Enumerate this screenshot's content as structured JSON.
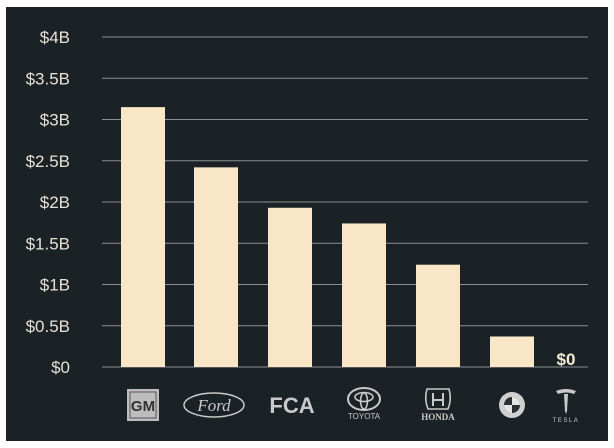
{
  "chart_data": {
    "type": "bar",
    "categories": [
      "GM",
      "Ford",
      "FCA",
      "TOYOTA",
      "HONDA",
      "BMW",
      "TESLA"
    ],
    "values": [
      3.15,
      2.42,
      1.93,
      1.74,
      1.24,
      0.37,
      0
    ],
    "unit": "billion USD",
    "ylim": [
      0,
      4
    ],
    "yticks": [
      {
        "value": 0,
        "label": "$0"
      },
      {
        "value": 0.5,
        "label": "$0.5B"
      },
      {
        "value": 1,
        "label": "$1B"
      },
      {
        "value": 1.5,
        "label": "$1.5B"
      },
      {
        "value": 2,
        "label": "$2B"
      },
      {
        "value": 2.5,
        "label": "$2.5B"
      },
      {
        "value": 3,
        "label": "$3B"
      },
      {
        "value": 3.5,
        "label": "$3.5B"
      },
      {
        "value": 4,
        "label": "$4B"
      }
    ],
    "data_labels": [
      {
        "category": "TESLA",
        "label": "$0"
      }
    ],
    "x_logos": [
      {
        "category": "GM",
        "text": "GM",
        "icon": "gm-logo-icon"
      },
      {
        "category": "Ford",
        "text": "Ford",
        "icon": "ford-logo-icon"
      },
      {
        "category": "FCA",
        "text": "FCA",
        "icon": "fca-logo-icon"
      },
      {
        "category": "TOYOTA",
        "text": "TOYOTA",
        "icon": "toyota-logo-icon"
      },
      {
        "category": "HONDA",
        "text": "HONDA",
        "icon": "honda-logo-icon"
      },
      {
        "category": "BMW",
        "text": "",
        "icon": "bmw-logo-icon"
      },
      {
        "category": "TESLA",
        "text": "TESLA",
        "icon": "tesla-logo-icon"
      }
    ],
    "grid": true,
    "legend": "none",
    "colors": {
      "background": "#1b2226",
      "bar": "#f8e6c6",
      "grid": "#8a8f8f",
      "text": "#e7e1d6"
    }
  }
}
